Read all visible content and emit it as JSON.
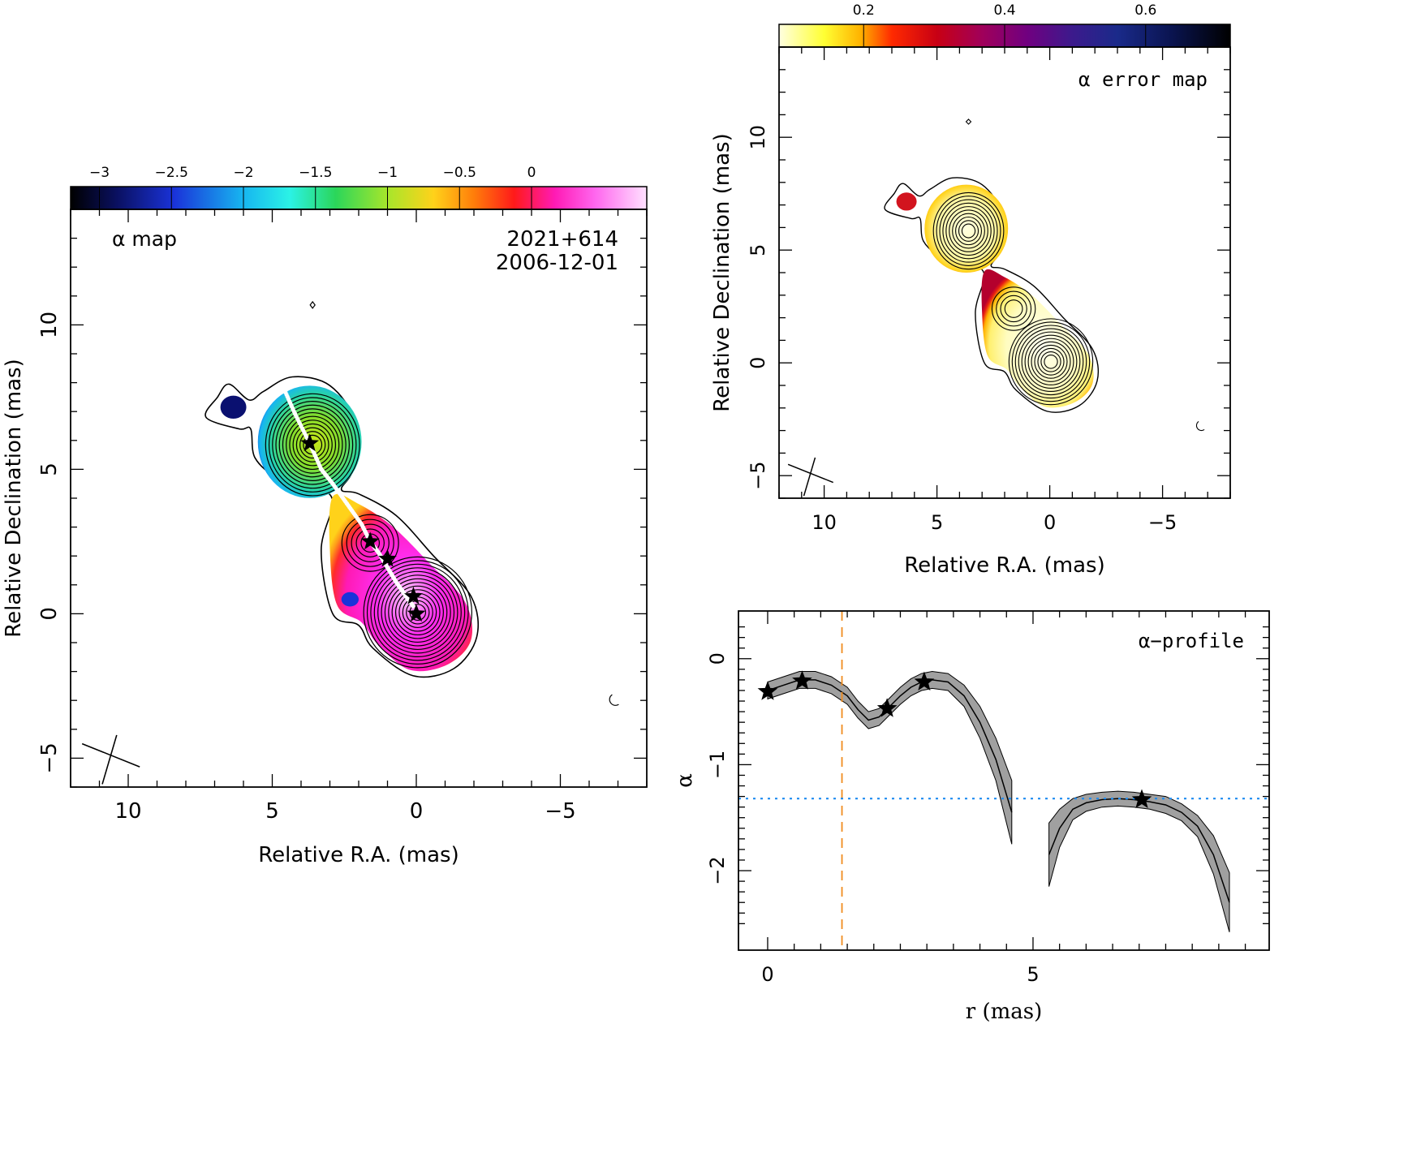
{
  "chart_data": [
    {
      "id": "alpha_map",
      "type": "heatmap",
      "label": "α map",
      "source": "2021+614",
      "date": "2006-12-01",
      "xlabel": "Relative R.A. (mas)",
      "ylabel": "Relative Declination (mas)",
      "xlim": [
        12,
        -8
      ],
      "ylim": [
        -6,
        14
      ],
      "x_ticks": [
        "10",
        "5",
        "0",
        "−5"
      ],
      "x_tick_values": [
        10,
        5,
        0,
        -5
      ],
      "y_ticks": [
        "−5",
        "0",
        "5",
        "10"
      ],
      "y_tick_values": [
        -5,
        0,
        5,
        10
      ],
      "colorbar": {
        "range": [
          -3.2,
          0.8
        ],
        "ticks": [
          "−3",
          "−2.5",
          "−2",
          "−1.5",
          "−1",
          "−0.5",
          "0"
        ],
        "tick_values": [
          -3,
          -2.5,
          -2,
          -1.5,
          -1,
          -0.5,
          0
        ]
      },
      "components": [
        {
          "ra": 0.0,
          "dec": 0.0,
          "alpha": -0.3
        },
        {
          "ra": 1.6,
          "dec": 2.4,
          "alpha": -0.3
        },
        {
          "ra": 3.7,
          "dec": 5.9,
          "alpha": -1.3
        },
        {
          "ra": 6.3,
          "dec": 7.1,
          "alpha": -3.0
        }
      ],
      "star_markers": [
        {
          "ra": 3.7,
          "dec": 5.9
        },
        {
          "ra": 1.6,
          "dec": 2.5
        },
        {
          "ra": 1.0,
          "dec": 1.9
        },
        {
          "ra": 0.1,
          "dec": 0.6
        },
        {
          "ra": 0.0,
          "dec": 0.0
        }
      ]
    },
    {
      "id": "alpha_error_map",
      "type": "heatmap",
      "label": "α error map",
      "xlabel": "Relative R.A. (mas)",
      "ylabel": "Relative Declination (mas)",
      "xlim": [
        12,
        -8
      ],
      "ylim": [
        -6,
        14
      ],
      "x_ticks": [
        "10",
        "5",
        "0",
        "−5"
      ],
      "x_tick_values": [
        10,
        5,
        0,
        -5
      ],
      "y_ticks": [
        "−5",
        "0",
        "5",
        "10"
      ],
      "y_tick_values": [
        -5,
        0,
        5,
        10
      ],
      "colorbar": {
        "range": [
          0.08,
          0.72
        ],
        "ticks": [
          "0.2",
          "0.4",
          "0.6"
        ],
        "tick_values": [
          0.2,
          0.4,
          0.6
        ]
      }
    },
    {
      "id": "alpha_profile",
      "type": "line",
      "label": "α−profile",
      "xlabel": "r (mas)",
      "ylabel": "α",
      "xlim": [
        -0.55,
        9.45
      ],
      "ylim": [
        -2.75,
        0.45
      ],
      "x_ticks": [
        "0",
        "5"
      ],
      "x_tick_values": [
        0,
        5
      ],
      "y_ticks": [
        "−2",
        "−1",
        "0"
      ],
      "y_tick_values": [
        -2,
        -1,
        0
      ],
      "segments": [
        {
          "r": [
            0.0,
            0.3,
            0.6,
            0.9,
            1.2,
            1.5,
            1.7,
            1.9,
            2.1,
            2.3,
            2.5,
            2.7,
            2.9,
            3.1,
            3.4,
            3.7,
            4.0,
            4.3,
            4.6
          ],
          "alpha": [
            -0.3,
            -0.25,
            -0.2,
            -0.2,
            -0.25,
            -0.35,
            -0.48,
            -0.58,
            -0.55,
            -0.45,
            -0.35,
            -0.27,
            -0.22,
            -0.2,
            -0.22,
            -0.35,
            -0.6,
            -0.95,
            -1.45
          ],
          "err": [
            0.08,
            0.08,
            0.08,
            0.08,
            0.08,
            0.08,
            0.08,
            0.08,
            0.08,
            0.08,
            0.08,
            0.08,
            0.08,
            0.08,
            0.08,
            0.1,
            0.15,
            0.2,
            0.3
          ]
        },
        {
          "r": [
            5.3,
            5.5,
            5.75,
            6.0,
            6.3,
            6.6,
            6.9,
            7.2,
            7.5,
            7.8,
            8.1,
            8.4,
            8.7
          ],
          "alpha": [
            -1.85,
            -1.6,
            -1.42,
            -1.36,
            -1.33,
            -1.32,
            -1.33,
            -1.35,
            -1.38,
            -1.45,
            -1.58,
            -1.85,
            -2.3
          ],
          "err": [
            0.3,
            0.18,
            0.1,
            0.08,
            0.07,
            0.07,
            0.07,
            0.07,
            0.08,
            0.08,
            0.1,
            0.18,
            0.28
          ]
        }
      ],
      "stars": [
        {
          "r": 0.0,
          "alpha": -0.31
        },
        {
          "r": 0.65,
          "alpha": -0.21
        },
        {
          "r": 2.25,
          "alpha": -0.47
        },
        {
          "r": 2.95,
          "alpha": -0.22
        },
        {
          "r": 7.05,
          "alpha": -1.33
        }
      ],
      "vline_r": 1.4,
      "hline_alpha": -1.32
    }
  ]
}
